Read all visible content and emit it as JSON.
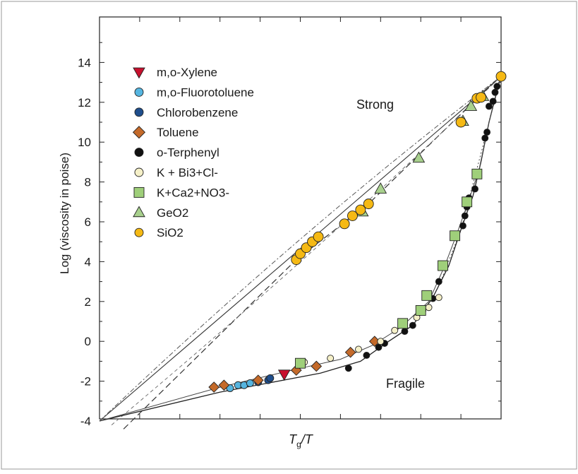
{
  "chart_data": {
    "type": "scatter",
    "ylabel": "Log (viscosity in poise)",
    "xlabel": "Tg/T",
    "ylim": [
      -4,
      15
    ],
    "xlim": [
      0,
      1
    ],
    "yticks": [
      "14",
      "12",
      "10",
      "8",
      "6",
      "4",
      "2",
      "0",
      "-2",
      "-4"
    ],
    "annotations": {
      "strong": "Strong",
      "fragile": "Fragile"
    },
    "legend_position": "top-left",
    "series": [
      {
        "name": "m,o-Xylene",
        "marker": "triangle-down",
        "color": "#c8102e",
        "points": [
          [
            0.46,
            -1.65
          ]
        ]
      },
      {
        "name": "m,o-Fluorotoluene",
        "marker": "circle",
        "color": "#55b5e0",
        "points": [
          [
            0.325,
            -2.35
          ],
          [
            0.345,
            -2.2
          ],
          [
            0.36,
            -2.2
          ],
          [
            0.375,
            -2.1
          ]
        ]
      },
      {
        "name": "Chlorobenzene",
        "marker": "circle",
        "color": "#1f4e8c",
        "points": [
          [
            0.395,
            -2.05
          ],
          [
            0.42,
            -1.95
          ],
          [
            0.425,
            -1.85
          ]
        ]
      },
      {
        "name": "Toluene",
        "marker": "diamond",
        "color": "#c46a2a",
        "points": [
          [
            0.285,
            -2.3
          ],
          [
            0.31,
            -2.2
          ],
          [
            0.395,
            -1.95
          ],
          [
            0.49,
            -1.45
          ],
          [
            0.54,
            -1.25
          ],
          [
            0.625,
            -0.55
          ],
          [
            0.685,
            0.0
          ]
        ]
      },
      {
        "name": "o-Terphenyl",
        "marker": "circle",
        "color": "#111111",
        "points": [
          [
            0.62,
            -1.35
          ],
          [
            0.665,
            -0.7
          ],
          [
            0.695,
            -0.3
          ],
          [
            0.71,
            -0.1
          ],
          [
            0.76,
            0.5
          ],
          [
            0.78,
            0.8
          ],
          [
            0.805,
            1.55
          ],
          [
            0.83,
            2.15
          ],
          [
            0.845,
            3.0
          ],
          [
            0.905,
            5.8
          ],
          [
            0.91,
            6.3
          ],
          [
            0.915,
            6.75
          ],
          [
            0.92,
            7.2
          ],
          [
            0.935,
            7.65
          ],
          [
            0.96,
            10.2
          ],
          [
            0.965,
            10.5
          ],
          [
            0.97,
            11.8
          ],
          [
            0.98,
            12.05
          ],
          [
            0.985,
            12.5
          ],
          [
            0.99,
            12.8
          ]
        ]
      },
      {
        "name": "K + Bi3+Cl-",
        "marker": "circle",
        "color": "#f5f0c8",
        "points": [
          [
            0.51,
            -1.05
          ],
          [
            0.575,
            -0.85
          ],
          [
            0.645,
            -0.4
          ],
          [
            0.7,
            0.0
          ],
          [
            0.735,
            0.55
          ],
          [
            0.79,
            1.2
          ],
          [
            0.82,
            1.7
          ],
          [
            0.845,
            2.2
          ]
        ]
      },
      {
        "name": "K+Ca2+NO3-",
        "marker": "square",
        "color": "#9fcf7a",
        "points": [
          [
            0.5,
            -1.1
          ],
          [
            0.755,
            0.9
          ],
          [
            0.8,
            1.55
          ],
          [
            0.815,
            2.3
          ],
          [
            0.855,
            3.8
          ],
          [
            0.885,
            5.3
          ],
          [
            0.915,
            7.0
          ],
          [
            0.94,
            8.4
          ]
        ]
      },
      {
        "name": "GeO2",
        "marker": "triangle-up",
        "color": "#a8d08d",
        "points": [
          [
            0.655,
            6.5
          ],
          [
            0.7,
            7.65
          ],
          [
            0.795,
            9.2
          ],
          [
            0.905,
            11.05
          ],
          [
            0.925,
            11.8
          ],
          [
            0.955,
            12.3
          ]
        ]
      },
      {
        "name": "SiO2",
        "marker": "circle",
        "color": "#f5b914",
        "points": [
          [
            0.49,
            4.1
          ],
          [
            0.5,
            4.4
          ],
          [
            0.515,
            4.7
          ],
          [
            0.53,
            5.0
          ],
          [
            0.545,
            5.25
          ],
          [
            0.61,
            5.9
          ],
          [
            0.63,
            6.3
          ],
          [
            0.65,
            6.6
          ],
          [
            0.67,
            6.9
          ],
          [
            0.9,
            11.0
          ],
          [
            0.94,
            12.2
          ],
          [
            0.95,
            12.25
          ],
          [
            1.0,
            13.3
          ]
        ]
      }
    ]
  }
}
